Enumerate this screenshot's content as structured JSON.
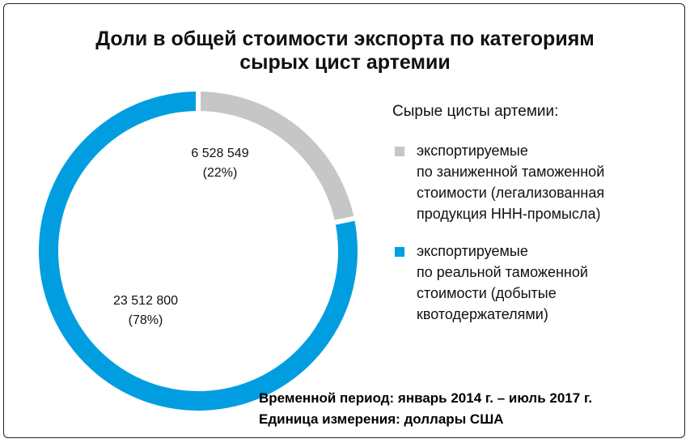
{
  "chart_data": {
    "type": "donut",
    "title": "Доли в общей стоимости экспорта по категориям\nсырых цист артемии",
    "legend_title": "Сырые цисты артемии:",
    "categories": [
      "экспортируемые\nпо заниженной таможенной\nстоимости (легализованная\nпродукция ННН-промысла)",
      "экспортируемые\nпо реальной таможенной\nстоимости (добытые\nквотодержателями)"
    ],
    "values": [
      6528549,
      23512800
    ],
    "value_labels": [
      "6 528 549",
      "23 512 800"
    ],
    "percents": [
      22,
      78
    ],
    "percent_labels": [
      "(22%)",
      "(78%)"
    ],
    "colors": [
      "#c6c6c6",
      "#009ee0"
    ],
    "legend": "right",
    "notes": [
      "Временной период: январь 2014 г. – июль 2017 г.",
      "Единица измерения: доллары США"
    ]
  }
}
